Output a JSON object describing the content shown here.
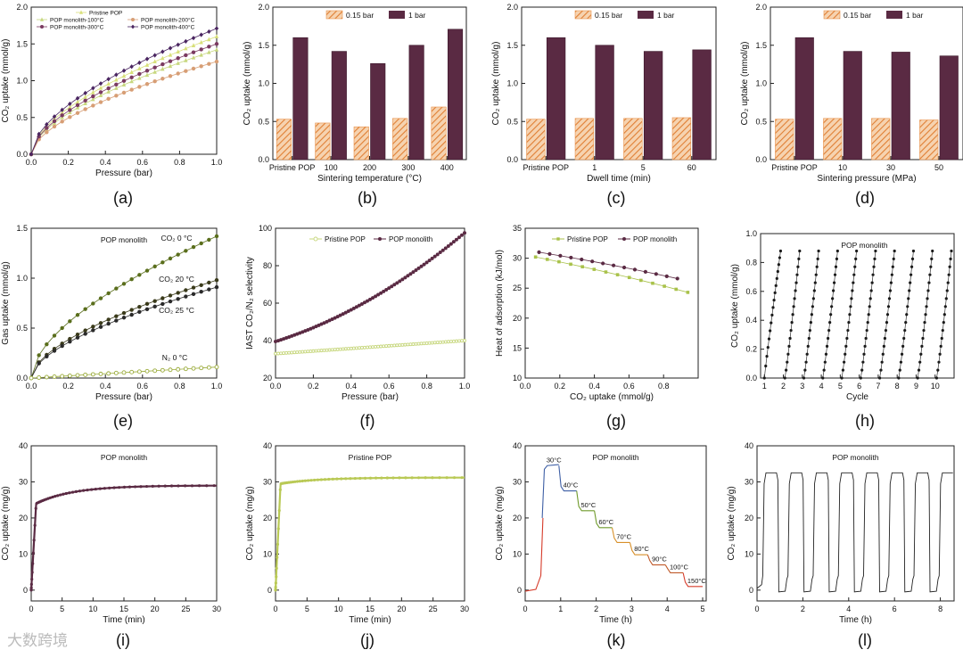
{
  "colors": {
    "orange": "#e8914a",
    "orange_bg": "#f6d3b0",
    "plum": "#5a2a43",
    "olive": "#5a6e1c",
    "lightolive": "#c7d77e",
    "yellowgreen": "#d8e07a",
    "tan": "#d79e75",
    "rose": "#b2788c",
    "purple": "#4a2560",
    "gray": "#555555",
    "red": "#d63b2a",
    "blue": "#3e5fa5",
    "green": "#6f9a2b"
  },
  "watermark": "大数跨境",
  "chart_data": [
    {
      "id": "a",
      "panel_label": "(a)",
      "type": "line",
      "xlabel": "Pressure (bar)",
      "ylabel": "CO₂ uptake (mmol/g)",
      "xlim": [
        0,
        1.0
      ],
      "ylim": [
        0,
        2.0
      ],
      "xticks": [
        0.0,
        0.2,
        0.4,
        0.6,
        0.8,
        1.0
      ],
      "xtick_labels": [
        "0.0",
        "0.2",
        "0.4",
        "0.6",
        "0.8",
        "1.0"
      ],
      "yticks": [
        0,
        0.5,
        1.0,
        1.5,
        2.0
      ],
      "ytick_labels": [
        "0.0",
        "0.5",
        "1.0",
        "1.5",
        "2.0"
      ],
      "legend": [
        {
          "label": "Pristine POP",
          "color": "#d8e07a",
          "marker": "triangle"
        },
        {
          "label": "POP monolith-100°C",
          "color": "#c7d77e",
          "marker": "triangle"
        },
        {
          "label": "POP monolith-200°C",
          "color": "#d79e75",
          "marker": "circle"
        },
        {
          "label": "POP monolith-300°C",
          "color": "#7a3a60",
          "marker": "circle"
        },
        {
          "label": "POP monolith-400°C",
          "color": "#4a2560",
          "marker": "diamond"
        }
      ],
      "series": [
        {
          "name": "Pristine POP",
          "color": "#d8e07a",
          "marker": "triangle",
          "model": "sqrt",
          "end": 1.6
        },
        {
          "name": "POP monolith-100°C",
          "color": "#c7d77e",
          "marker": "triangle",
          "model": "sqrt",
          "end": 1.42
        },
        {
          "name": "POP monolith-200°C",
          "color": "#d79e75",
          "marker": "circle",
          "model": "sqrt",
          "end": 1.26
        },
        {
          "name": "POP monolith-300°C",
          "color": "#7a3a60",
          "marker": "circle",
          "model": "sqrt",
          "end": 1.5
        },
        {
          "name": "POP monolith-400°C",
          "color": "#4a2560",
          "marker": "diamond",
          "model": "sqrt",
          "end": 1.71
        }
      ]
    },
    {
      "id": "b",
      "panel_label": "(b)",
      "type": "bar",
      "xlabel": "Sintering temperature (°C)",
      "ylabel": "CO₂ uptake (mmol/g)",
      "ylim": [
        0,
        2.0
      ],
      "yticks": [
        0,
        0.5,
        1.0,
        1.5,
        2.0
      ],
      "ytick_labels": [
        "0.0",
        "0.5",
        "1.0",
        "1.5",
        "2.0"
      ],
      "categories": [
        "Pristine POP",
        "100",
        "200",
        "300",
        "400"
      ],
      "series": [
        {
          "name": "0.15 bar",
          "values": [
            0.53,
            0.48,
            0.43,
            0.54,
            0.69
          ]
        },
        {
          "name": "1 bar",
          "values": [
            1.6,
            1.42,
            1.26,
            1.5,
            1.71
          ]
        }
      ]
    },
    {
      "id": "c",
      "panel_label": "(c)",
      "type": "bar",
      "xlabel": "Dwell time (min)",
      "ylabel": "CO₂ uptake (mmol/g)",
      "ylim": [
        0,
        2.0
      ],
      "yticks": [
        0,
        0.5,
        1.0,
        1.5,
        2.0
      ],
      "ytick_labels": [
        "0.0",
        "0.5",
        "1.0",
        "1.5",
        "2.0"
      ],
      "categories": [
        "Pristine POP",
        "1",
        "5",
        "60"
      ],
      "series": [
        {
          "name": "0.15 bar",
          "values": [
            0.53,
            0.54,
            0.54,
            0.55
          ]
        },
        {
          "name": "1 bar",
          "values": [
            1.6,
            1.5,
            1.42,
            1.44
          ]
        }
      ]
    },
    {
      "id": "d",
      "panel_label": "(d)",
      "type": "bar",
      "xlabel": "Sintering pressure (MPa)",
      "ylabel": "CO₂ uptake (mmol/g)",
      "ylim": [
        0,
        2.0
      ],
      "yticks": [
        0,
        0.5,
        1.0,
        1.5,
        2.0
      ],
      "ytick_labels": [
        "0.0",
        "0.5",
        "1.0",
        "1.5",
        "2.0"
      ],
      "categories": [
        "Pristine POP",
        "10",
        "30",
        "50"
      ],
      "series": [
        {
          "name": "0.15 bar",
          "values": [
            0.53,
            0.54,
            0.54,
            0.52
          ]
        },
        {
          "name": "1 bar",
          "values": [
            1.6,
            1.42,
            1.41,
            1.36
          ]
        }
      ]
    },
    {
      "id": "e",
      "panel_label": "(e)",
      "type": "line",
      "title": "POP monolith",
      "xlabel": "Pressure (bar)",
      "ylabel": "Gas uptake (mmol/g)",
      "xlim": [
        0,
        1.0
      ],
      "ylim": [
        0,
        1.5
      ],
      "xticks": [
        0.0,
        0.2,
        0.4,
        0.6,
        0.8,
        1.0
      ],
      "xtick_labels": [
        "0.0",
        "0.2",
        "0.4",
        "0.6",
        "0.8",
        "1.0"
      ],
      "yticks": [
        0,
        0.5,
        1.0,
        1.5
      ],
      "ytick_labels": [
        "0.0",
        "0.5",
        "1.0",
        "1.5"
      ],
      "series": [
        {
          "name": "CO₂ 0 °C",
          "color": "#5a6e1c",
          "marker": "circle",
          "model": "sqrt",
          "end": 1.42
        },
        {
          "name": "CO₂ 20 °C",
          "color": "#3a3a1a",
          "marker": "circle",
          "model": "sqrt",
          "end": 0.98
        },
        {
          "name": "CO₂ 25 °C",
          "color": "#2a2a2a",
          "marker": "circle",
          "model": "sqrt",
          "end": 0.91
        },
        {
          "name": "N₂ 0 °C",
          "color": "#9aab3a",
          "marker": "open",
          "model": "linear",
          "end": 0.11
        }
      ],
      "annotations": [
        "CO₂ 0 °C",
        "CO₂ 20 °C",
        "CO₂ 25 °C",
        "N₂ 0 °C"
      ]
    },
    {
      "id": "f",
      "panel_label": "(f)",
      "type": "line",
      "xlabel": "Pressure (bar)",
      "ylabel": "IAST CO₂/N₂ selectivity",
      "xlim": [
        0,
        1.0
      ],
      "ylim": [
        20,
        100
      ],
      "xticks": [
        0.0,
        0.2,
        0.4,
        0.6,
        0.8,
        1.0
      ],
      "xtick_labels": [
        "0.0",
        "0.2",
        "0.4",
        "0.6",
        "0.8",
        "1.0"
      ],
      "yticks": [
        20,
        40,
        60,
        80,
        100
      ],
      "ytick_labels": [
        "20",
        "40",
        "60",
        "80",
        "100"
      ],
      "legend": [
        {
          "label": "Pristine POP",
          "color": "#c7d77e",
          "marker": "open"
        },
        {
          "label": "POP monolith",
          "color": "#5a2a43",
          "marker": "circle"
        }
      ],
      "series": [
        {
          "name": "Pristine POP",
          "color": "#c7d77e",
          "start": 33,
          "end": 40,
          "curve": 0.0
        },
        {
          "name": "POP monolith",
          "color": "#5a2a43",
          "start": 39.5,
          "end": 97.5,
          "curve": 0.45
        }
      ]
    },
    {
      "id": "g",
      "panel_label": "(g)",
      "type": "line",
      "xlabel": "CO₂ uptake (mmol/g)",
      "ylabel": "Heat of adsorption (kJ/mol)",
      "xlim": [
        0,
        1.0
      ],
      "ylim": [
        10,
        35
      ],
      "xticks": [
        0.0,
        0.2,
        0.4,
        0.6,
        0.8
      ],
      "xtick_labels": [
        "0.0",
        "0.2",
        "0.4",
        "0.6",
        "0.8"
      ],
      "yticks": [
        10,
        15,
        20,
        25,
        30,
        35
      ],
      "ytick_labels": [
        "10",
        "15",
        "20",
        "25",
        "30",
        "35"
      ],
      "legend": [
        {
          "label": "Pristine POP",
          "color": "#a9c24a",
          "marker": "square"
        },
        {
          "label": "POP monolith",
          "color": "#5a2a43",
          "marker": "circle"
        }
      ],
      "series": [
        {
          "name": "Pristine POP",
          "color": "#a9c24a",
          "x": [
            0.06,
            0.94
          ],
          "y": [
            30.2,
            24.3
          ]
        },
        {
          "name": "POP monolith",
          "color": "#5a2a43",
          "x": [
            0.08,
            0.88
          ],
          "y": [
            31.0,
            26.6
          ]
        }
      ]
    },
    {
      "id": "h",
      "panel_label": "(h)",
      "type": "scatter",
      "title": "POP monolith",
      "xlabel": "Cycle",
      "ylabel": "CO₂ uptake (mmol/g)",
      "xlim": [
        0.8,
        11.0
      ],
      "ylim": [
        0,
        1.0
      ],
      "xticks": [
        1,
        2,
        3,
        4,
        5,
        6,
        7,
        8,
        9,
        10
      ],
      "xtick_labels": [
        "1",
        "2",
        "3",
        "4",
        "5",
        "6",
        "7",
        "8",
        "9",
        "10"
      ],
      "yticks": [
        0,
        0.2,
        0.4,
        0.6,
        0.8,
        1.0
      ],
      "ytick_labels": [
        "0.0",
        "0.2",
        "0.4",
        "0.6",
        "0.8",
        "1.0"
      ],
      "cycles": 10,
      "max": 0.88
    },
    {
      "id": "i",
      "panel_label": "(i)",
      "type": "line",
      "title": "POP monolith",
      "xlabel": "Time (min)",
      "ylabel": "CO₂ uptake (mg/g)",
      "xlim": [
        0,
        30
      ],
      "ylim": [
        -3,
        40
      ],
      "xticks": [
        0,
        5,
        10,
        15,
        20,
        25,
        30
      ],
      "xtick_labels": [
        "0",
        "5",
        "10",
        "15",
        "20",
        "25",
        "30"
      ],
      "yticks": [
        0,
        10,
        20,
        30,
        40
      ],
      "ytick_labels": [
        "0",
        "10",
        "20",
        "30",
        "40"
      ],
      "series": [
        {
          "name": "",
          "color": "#5a2a43",
          "plateau": 29.0,
          "knee": 24.0
        }
      ]
    },
    {
      "id": "j",
      "panel_label": "(j)",
      "type": "line",
      "title": "Pristine POP",
      "xlabel": "Time (min)",
      "ylabel": "CO₂ uptake (mg/g)",
      "xlim": [
        0,
        30
      ],
      "ylim": [
        -3,
        40
      ],
      "xticks": [
        0,
        5,
        10,
        15,
        20,
        25,
        30
      ],
      "xtick_labels": [
        "0",
        "5",
        "10",
        "15",
        "20",
        "25",
        "30"
      ],
      "yticks": [
        0,
        10,
        20,
        30,
        40
      ],
      "ytick_labels": [
        "0",
        "10",
        "20",
        "30",
        "40"
      ],
      "series": [
        {
          "name": "",
          "color": "#b9c955",
          "plateau": 31.2,
          "knee": 29.5
        }
      ]
    },
    {
      "id": "k",
      "panel_label": "(k)",
      "type": "line",
      "title": "POP monolith",
      "xlabel": "Time (h)",
      "ylabel": "CO₂ uptake (mg/g)",
      "xlim": [
        0,
        5.1
      ],
      "ylim": [
        -3,
        40
      ],
      "xticks": [
        0,
        1,
        2,
        3,
        4,
        5
      ],
      "xtick_labels": [
        "0",
        "1",
        "2",
        "3",
        "4",
        "5"
      ],
      "yticks": [
        0,
        10,
        20,
        30,
        40
      ],
      "ytick_labels": [
        "0",
        "10",
        "20",
        "30",
        "40"
      ],
      "steps": [
        {
          "label": "30°C",
          "t0": 0.48,
          "t1": 0.95,
          "y": 34.5
        },
        {
          "label": "40°C",
          "t0": 0.95,
          "t1": 1.45,
          "y": 27.5
        },
        {
          "label": "50°C",
          "t0": 1.45,
          "t1": 1.95,
          "y": 22.0
        },
        {
          "label": "60°C",
          "t0": 1.95,
          "t1": 2.45,
          "y": 17.3
        },
        {
          "label": "70°C",
          "t0": 2.45,
          "t1": 2.95,
          "y": 13.2
        },
        {
          "label": "80°C",
          "t0": 2.95,
          "t1": 3.45,
          "y": 9.8
        },
        {
          "label": "90°C",
          "t0": 3.45,
          "t1": 3.95,
          "y": 7.0
        },
        {
          "label": "100°C",
          "t0": 3.95,
          "t1": 4.45,
          "y": 4.8
        },
        {
          "label": "150°C",
          "t0": 4.45,
          "t1": 5.0,
          "y": 1.0
        }
      ]
    },
    {
      "id": "l",
      "panel_label": "(l)",
      "type": "line",
      "title": "POP monolith",
      "xlabel": "Time (h)",
      "ylabel": "CO₂ uptake (mg/g)",
      "xlim": [
        0,
        8.6
      ],
      "ylim": [
        -3,
        40
      ],
      "xticks": [
        0,
        2,
        4,
        6,
        8
      ],
      "xtick_labels": [
        "0",
        "2",
        "4",
        "6",
        "8"
      ],
      "yticks": [
        0,
        10,
        20,
        30,
        40
      ],
      "ytick_labels": [
        "0",
        "10",
        "20",
        "30",
        "40"
      ],
      "cycles": 8,
      "period": 1.1,
      "high": 32.5,
      "low": -0.5
    }
  ]
}
